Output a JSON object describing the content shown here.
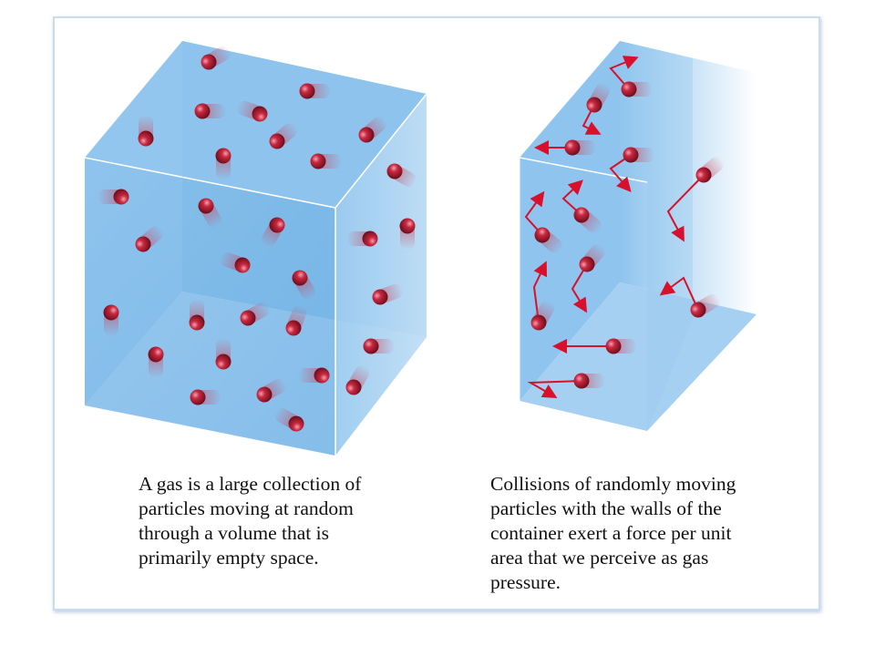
{
  "captions": [
    {
      "lines": [
        "A gas is a large collection of",
        "particles moving at random",
        "through a volume that is",
        "primarily empty space."
      ]
    },
    {
      "lines": [
        "Collisions of randomly moving",
        "particles with the walls of the",
        "container exert a force per unit",
        "area that we perceive as gas",
        "pressure."
      ]
    }
  ]
}
